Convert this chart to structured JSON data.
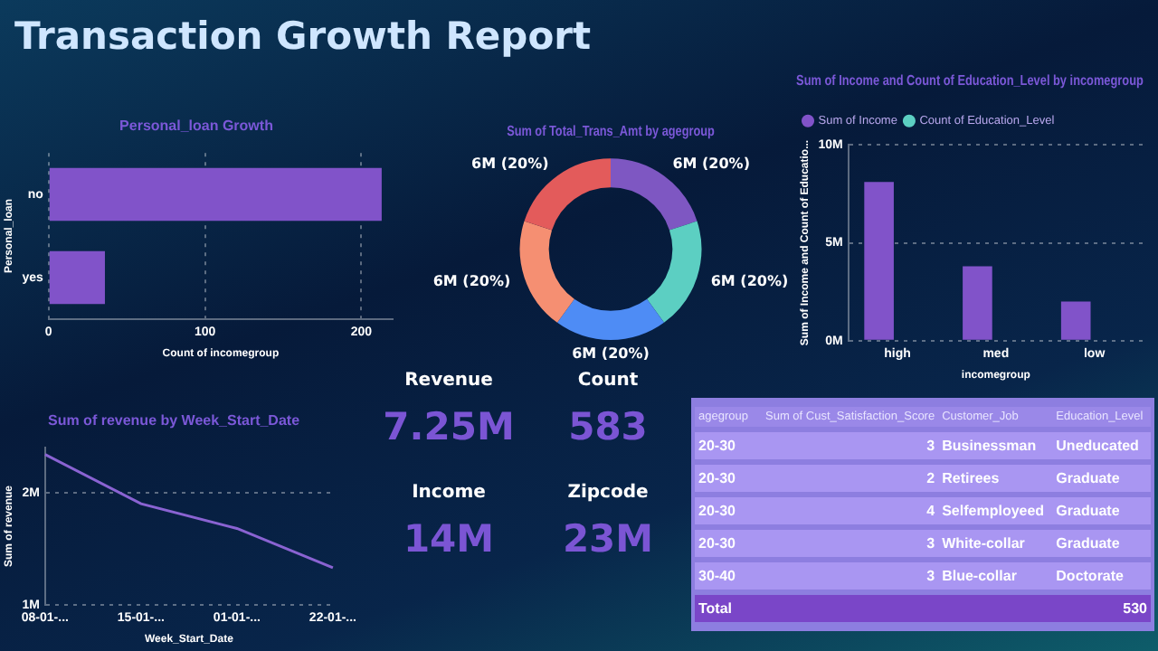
{
  "chart_data": [
    {
      "type": "other",
      "title": "Transaction Growth Report"
    },
    {
      "type": "bar",
      "title": "Personal_loan Growth",
      "orientation": "horizontal",
      "categories": [
        "no",
        "yes"
      ],
      "values": [
        213,
        36
      ],
      "color": "#8153c9",
      "xlim": [
        0,
        220
      ],
      "xticks": [
        0,
        100,
        200
      ],
      "grid": "x",
      "xlabel": "Count of incomegroup",
      "ylabel": "Personal_loan"
    },
    {
      "type": "donut",
      "title": "Sum of Total_Trans_Amt by agegroup",
      "categories": [
        null,
        null,
        null,
        null,
        null
      ],
      "values": [
        20,
        20,
        20,
        20,
        20
      ],
      "colors": [
        "#7e57c2",
        "#5ccfc2",
        "#4e8cf5",
        "#f58f72",
        "#e35b5b"
      ],
      "value_labels": [
        "6M (20%)",
        "6M (20%)",
        "6M (20%)",
        "6M (20%)",
        "6M (20%)"
      ]
    },
    {
      "type": "bar",
      "title": "Sum of Income and Count of Education_Level by incomegroup",
      "categories": [
        "high",
        "med",
        "low"
      ],
      "series": [
        {
          "name": "Sum of Income",
          "color": "#8153c9",
          "values": [
            8100000,
            3800000,
            2000000
          ]
        },
        {
          "name": "Count of Education_Level",
          "color": "#5ccfc2",
          "values": [
            0,
            0,
            0
          ]
        }
      ],
      "ylim": [
        0,
        10000000
      ],
      "yticks": [
        {
          "value": 0,
          "label": "0M"
        },
        {
          "value": 5000000,
          "label": "5M"
        },
        {
          "value": 10000000,
          "label": "10M"
        }
      ],
      "grid": "y",
      "legend": "top left",
      "xlabel": "incomegroup",
      "ylabel": "Sum of Income and Count of Educatio..."
    },
    {
      "type": "line",
      "title": "Sum of revenue by Week_Start_Date",
      "categories": [
        "08-01-...",
        "15-01-...",
        "01-01-...",
        "22-01-..."
      ],
      "values": [
        2340000,
        1900000,
        1680000,
        1330000
      ],
      "color": "#8a63d2",
      "ylim": [
        1000000,
        2400000
      ],
      "yticks": [
        {
          "value": 1000000,
          "label": "1M"
        },
        {
          "value": 2000000,
          "label": "2M"
        }
      ],
      "grid": "y",
      "marker": "none",
      "xlabel": "Week_Start_Date",
      "ylabel": "Sum of revenue"
    },
    {
      "type": "other",
      "annotations": [
        "Revenue",
        "7.25M",
        "Count",
        "583",
        "Income",
        "14M",
        "Zipcode",
        "23M"
      ]
    },
    {
      "type": "other",
      "categories": [
        "agegroup",
        "Sum of Cust_Satisfaction_Score",
        "Customer_Job",
        "Education_Level"
      ],
      "annotations": [
        "20-30",
        "3",
        "Businessman",
        "Uneducated",
        "20-30",
        "2",
        "Retirees",
        "Graduate",
        "20-30",
        "4",
        "Selfemployeed",
        "Graduate",
        "20-30",
        "3",
        "White-collar",
        "Graduate",
        "30-40",
        "3",
        "Blue-collar",
        "Doctorate",
        "Total",
        "530"
      ]
    }
  ]
}
